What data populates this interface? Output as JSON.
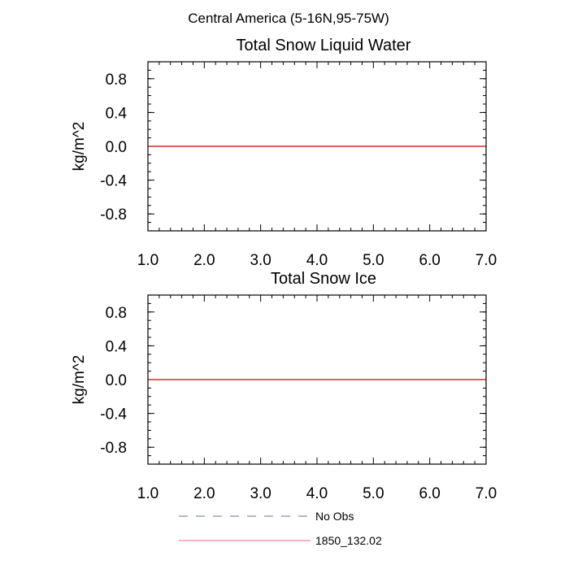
{
  "figure": {
    "title": "Central America (5-16N,95-75W)"
  },
  "chart_data": [
    {
      "type": "line",
      "title": "Total Snow Liquid Water",
      "xlabel": "",
      "ylabel": "kg/m^2",
      "xlim": [
        1.0,
        7.0
      ],
      "ylim": [
        -1.0,
        1.0
      ],
      "x_ticks": [
        "1.0",
        "2.0",
        "3.0",
        "4.0",
        "5.0",
        "6.0",
        "7.0"
      ],
      "y_ticks": [
        "0.8",
        "0.4",
        "0.0",
        "-0.4",
        "-0.8"
      ],
      "y_tick_values": [
        0.8,
        0.4,
        0.0,
        -0.4,
        -0.8
      ],
      "zero_line": true,
      "series": [
        {
          "name": "1850_132.02",
          "color": "#cc0000",
          "x": [
            1.0,
            7.0
          ],
          "values": [
            0.0,
            0.0
          ]
        }
      ]
    },
    {
      "type": "line",
      "title": "Total Snow Ice",
      "xlabel": "",
      "ylabel": "kg/m^2",
      "xlim": [
        1.0,
        7.0
      ],
      "ylim": [
        -1.0,
        1.0
      ],
      "x_ticks": [
        "1.0",
        "2.0",
        "3.0",
        "4.0",
        "5.0",
        "6.0",
        "7.0"
      ],
      "y_ticks": [
        "0.8",
        "0.4",
        "0.0",
        "-0.4",
        "-0.8"
      ],
      "y_tick_values": [
        0.8,
        0.4,
        0.0,
        -0.4,
        -0.8
      ],
      "zero_line": true,
      "series": [
        {
          "name": "1850_132.02",
          "color": "#cc0000",
          "x": [
            1.0,
            7.0
          ],
          "values": [
            0.0,
            0.0
          ]
        }
      ]
    }
  ],
  "legend": {
    "items": [
      {
        "label": "No Obs",
        "color": "#6670a0",
        "style": "dashed"
      },
      {
        "label": "1850_132.02",
        "color": "#ff6080",
        "style": "solid"
      }
    ]
  }
}
